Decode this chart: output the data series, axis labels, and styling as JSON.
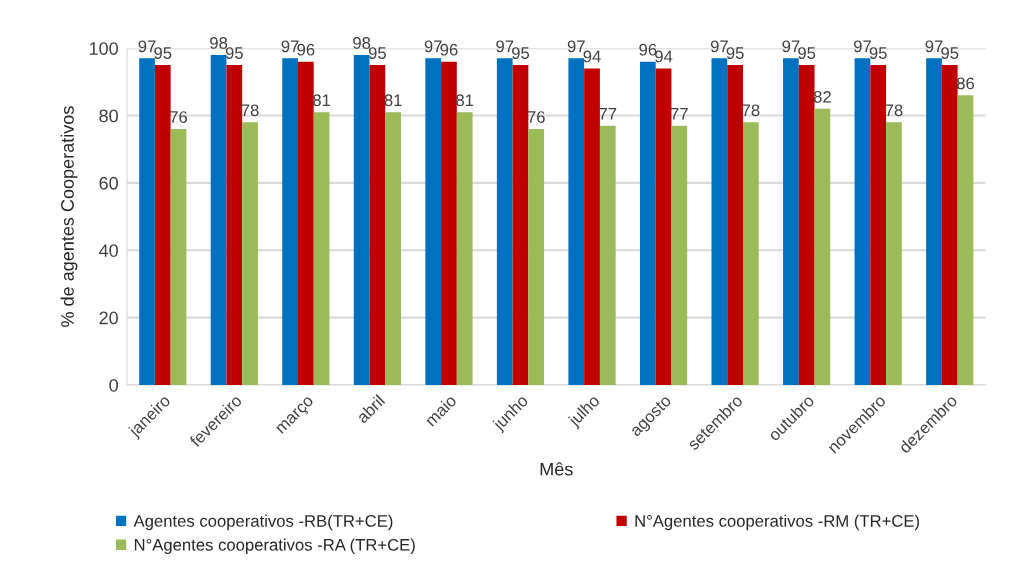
{
  "chart_data": {
    "type": "bar",
    "xlabel": "Mês",
    "ylabel": "% de agentes Cooperativos",
    "categories": [
      "janeiro",
      "fevereiro",
      "março",
      "abril",
      "maio",
      "junho",
      "julho",
      "agosto",
      "setembro",
      "outubro",
      "novembro",
      "dezembro"
    ],
    "series": [
      {
        "name": "Agentes cooperativos -RB(TR+CE)",
        "color": "#0070c0",
        "values": [
          97,
          98,
          97,
          98,
          97,
          97,
          97,
          96,
          97,
          97,
          97,
          97
        ]
      },
      {
        "name": "N°Agentes cooperativos -RM (TR+CE)",
        "color": "#c00000",
        "values": [
          95,
          95,
          96,
          95,
          96,
          95,
          94,
          94,
          95,
          95,
          95,
          95
        ]
      },
      {
        "name": "N°Agentes cooperativos -RA (TR+CE)",
        "color": "#9bbb59",
        "values": [
          76,
          78,
          81,
          81,
          81,
          76,
          77,
          77,
          78,
          82,
          78,
          86
        ]
      }
    ],
    "ylim": [
      0,
      100
    ],
    "yticks": [
      0,
      20,
      40,
      60,
      80,
      100
    ],
    "grid": "y",
    "legend": "bottom",
    "data_labels": true
  }
}
